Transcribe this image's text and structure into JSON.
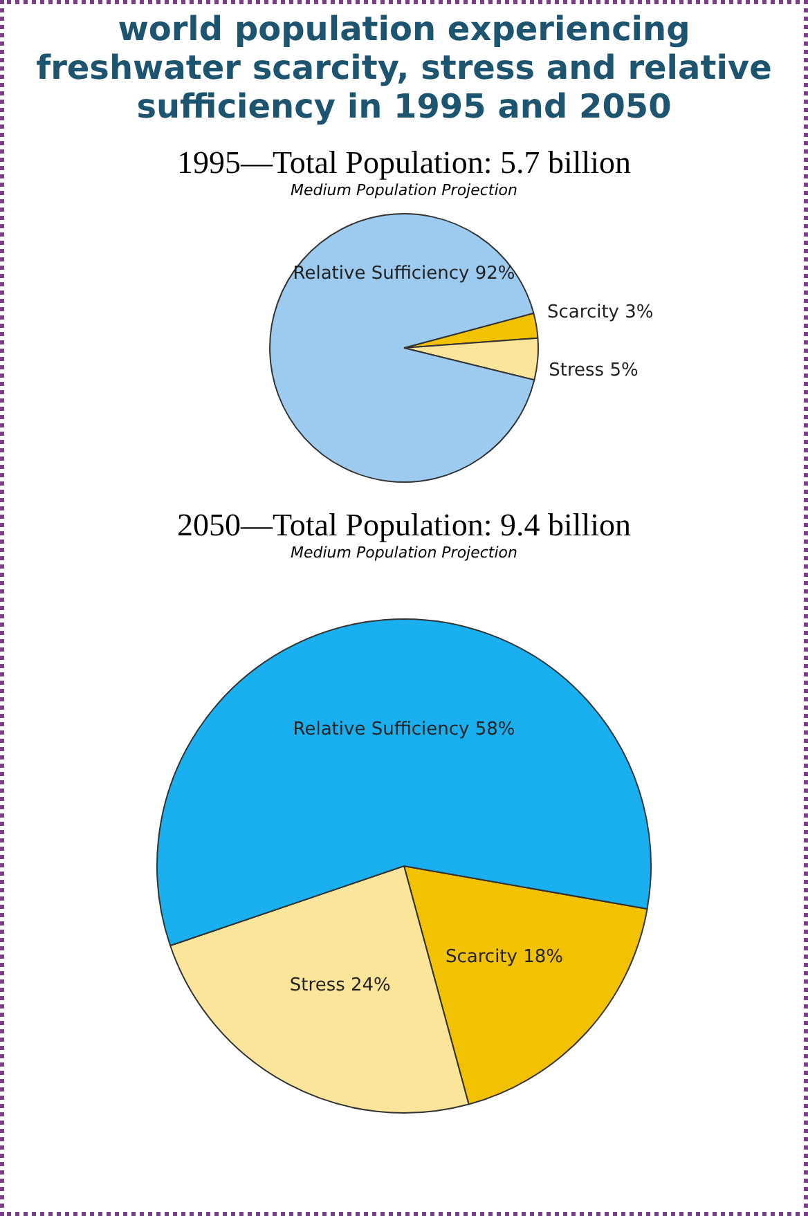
{
  "chart_data": [
    {
      "type": "pie",
      "title": "1995—Total Population:  5.7 billion",
      "subtitle": "Medium Population Projection",
      "annotations": [
        "world population experiencing freshwater scarcity, stress and relative sufficiency in 1995 and 2050"
      ],
      "categories": [
        "Scarcity",
        "Stress",
        "Relative Sufficiency"
      ],
      "values": [
        3,
        5,
        92
      ],
      "value_labels": [
        "3%",
        "5%",
        "92%"
      ],
      "colors": [
        "#f2c200",
        "#fbe59a",
        "#9dcbf0"
      ]
    },
    {
      "type": "pie",
      "title": "2050—Total Population:  9.4 billion",
      "subtitle": "Medium Population Projection",
      "categories": [
        "Scarcity",
        "Stress",
        "Relative Sufficiency"
      ],
      "values": [
        18,
        24,
        58
      ],
      "value_labels": [
        "18%",
        "24%",
        "58%"
      ],
      "colors": [
        "#f2c200",
        "#fbe59a",
        "#1ab0ef"
      ]
    }
  ]
}
